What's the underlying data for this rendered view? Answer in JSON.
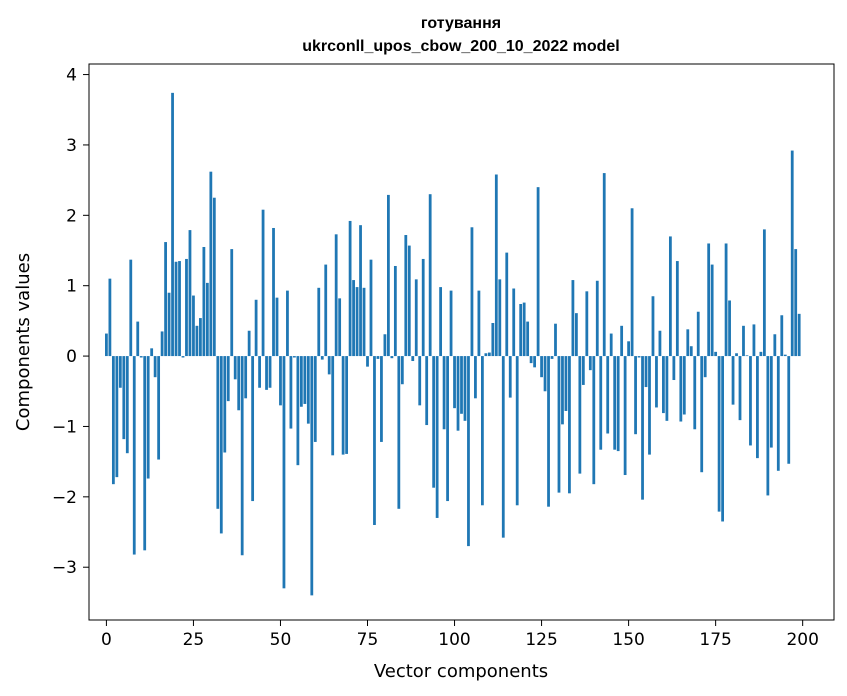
{
  "chart_data": {
    "type": "bar",
    "title_line1": "готування",
    "title_line2": "ukrconll_upos_cbow_200_10_2022 model",
    "xlabel": "Vector components",
    "ylabel": "Components values",
    "xlim": [
      -5,
      209
    ],
    "ylim": [
      -3.75,
      4.15
    ],
    "xticks": [
      0,
      25,
      50,
      75,
      100,
      125,
      150,
      175,
      200
    ],
    "yticks": [
      -3,
      -2,
      -1,
      0,
      1,
      2,
      3,
      4
    ],
    "ytick_labels": [
      "−3",
      "−2",
      "−1",
      "0",
      "1",
      "2",
      "3",
      "4"
    ],
    "bar_color": "#1f77b4",
    "bar_width": 0.8,
    "values": [
      0.32,
      1.1,
      -1.82,
      -1.72,
      -0.45,
      -1.18,
      -1.38,
      1.37,
      -2.82,
      0.49,
      -0.02,
      -2.76,
      -1.74,
      0.11,
      -0.3,
      -1.47,
      0.35,
      1.62,
      0.9,
      3.74,
      1.34,
      1.35,
      -0.02,
      1.38,
      1.79,
      0.86,
      0.43,
      0.54,
      1.55,
      1.04,
      2.62,
      2.25,
      -2.17,
      -2.52,
      -1.37,
      -0.64,
      1.52,
      -0.33,
      -0.77,
      -2.83,
      -0.6,
      0.36,
      -2.06,
      0.8,
      -0.45,
      2.08,
      -0.48,
      -0.45,
      1.82,
      0.83,
      -0.7,
      -3.3,
      0.93,
      -1.03,
      -0.02,
      -1.55,
      -0.72,
      -0.68,
      -0.96,
      -3.4,
      -1.22,
      0.97,
      -0.05,
      1.3,
      -0.26,
      -1.41,
      1.73,
      0.82,
      -1.4,
      -1.39,
      1.92,
      1.08,
      0.98,
      1.86,
      0.97,
      -0.15,
      1.37,
      -2.4,
      -0.04,
      -1.22,
      0.31,
      2.29,
      -0.03,
      1.28,
      -2.17,
      -0.4,
      1.72,
      1.57,
      -0.07,
      1.09,
      -0.7,
      1.38,
      -0.98,
      2.3,
      -1.87,
      -2.3,
      0.98,
      -1.04,
      -2.06,
      0.93,
      -0.74,
      -1.06,
      -0.82,
      -0.92,
      -2.7,
      1.83,
      -0.6,
      0.93,
      -2.12,
      0.04,
      0.05,
      0.47,
      2.58,
      1.09,
      -2.58,
      1.47,
      -0.59,
      0.96,
      -2.12,
      0.74,
      0.76,
      0.49,
      -0.1,
      -0.16,
      2.4,
      -0.3,
      -0.5,
      -2.14,
      -0.04,
      0.46,
      -1.94,
      -0.97,
      -0.78,
      -1.95,
      1.08,
      0.61,
      -1.67,
      -0.41,
      0.92,
      -0.2,
      -1.82,
      1.07,
      -1.33,
      2.6,
      -1.1,
      0.32,
      -1.33,
      -1.35,
      0.43,
      -1.69,
      0.21,
      2.1,
      -1.11,
      -0.02,
      -2.04,
      -0.44,
      -1.4,
      0.85,
      -0.73,
      0.36,
      -0.81,
      -0.92,
      1.7,
      -0.34,
      1.35,
      -0.93,
      -0.83,
      0.38,
      0.14,
      -1.04,
      0.63,
      -1.65,
      -0.3,
      1.6,
      1.3,
      0.06,
      -2.21,
      -2.35,
      1.6,
      0.79,
      -0.69,
      0.04,
      -0.91,
      0.43,
      0.01,
      -1.27,
      0.45,
      -1.45,
      0.06,
      1.8,
      -1.98,
      -1.3,
      0.31,
      -1.63,
      0.58,
      0.02,
      -1.53,
      2.92,
      1.52,
      0.6
    ]
  }
}
